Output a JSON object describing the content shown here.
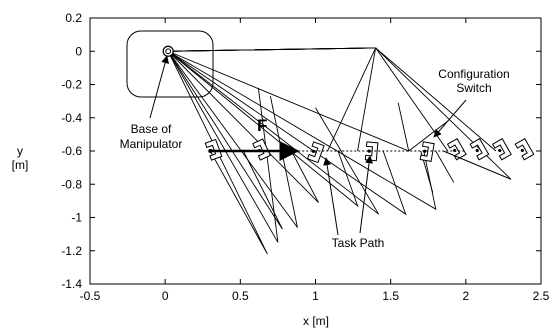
{
  "chart_data": {
    "type": "diagram",
    "xlabel": "x [m]",
    "ylabel_line1": "y",
    "ylabel_line2": "[m]",
    "xlim": [
      -0.5,
      2.5
    ],
    "ylim": [
      -1.4,
      0.2
    ],
    "xticks": [
      -0.5,
      0,
      0.5,
      1,
      1.5,
      2,
      2.5
    ],
    "xtick_labels": [
      "-0.5",
      "0",
      "0.5",
      "1",
      "1.5",
      "2",
      "2.5"
    ],
    "yticks": [
      0.2,
      0,
      -0.2,
      -0.4,
      -0.6,
      -0.8,
      -1,
      -1.2,
      -1.4
    ],
    "ytick_labels": [
      "0.2",
      "0",
      "-0.2",
      "-0.4",
      "-0.6",
      "-0.8",
      "-1",
      "-1.2",
      "-1.4"
    ],
    "base_point": [
      0.02,
      0.0
    ],
    "task_path": {
      "start": [
        0.3,
        -0.6
      ],
      "end": [
        2.0,
        -0.6
      ]
    },
    "force_arrow": {
      "start": [
        0.3,
        -0.6
      ],
      "end": [
        0.88,
        -0.6
      ]
    },
    "extension_line": {
      "start": [
        1.85,
        -0.6
      ],
      "end": [
        2.3,
        -0.77
      ]
    },
    "configurations": [
      {
        "elbow": [
          0.68,
          -1.22
        ],
        "wrist": [
          0.3,
          -0.6
        ]
      },
      {
        "elbow": [
          0.75,
          -1.15
        ],
        "wrist": [
          0.62,
          -0.22
        ]
      },
      {
        "elbow": [
          0.78,
          -1.07
        ],
        "wrist": [
          0.52,
          -0.6
        ]
      },
      {
        "elbow": [
          0.88,
          -1.06
        ],
        "wrist": [
          0.7,
          -0.27
        ]
      },
      {
        "elbow": [
          1.02,
          -0.91
        ],
        "wrist": [
          0.84,
          -0.6
        ]
      },
      {
        "elbow": [
          1.28,
          -0.93
        ],
        "wrist": [
          1.15,
          -0.6
        ]
      },
      {
        "elbow": [
          1.42,
          -0.98
        ],
        "wrist": [
          1.0,
          -0.34
        ]
      },
      {
        "elbow": [
          1.6,
          -0.98
        ],
        "wrist": [
          1.45,
          -0.6
        ]
      },
      {
        "elbow": [
          1.8,
          -0.95
        ],
        "wrist": [
          1.72,
          -0.6
        ]
      },
      {
        "elbow": [
          1.62,
          -0.6
        ],
        "wrist": [
          1.55,
          -0.31
        ]
      },
      {
        "elbow": [
          1.4,
          0.02
        ],
        "wrist": [
          1.08,
          -0.6
        ]
      },
      {
        "elbow": [
          1.4,
          0.02
        ],
        "wrist": [
          1.28,
          -0.6
        ]
      },
      {
        "elbow": [
          1.4,
          0.02
        ],
        "wrist": [
          1.88,
          -0.6
        ]
      },
      {
        "elbow": [
          1.4,
          0.02
        ],
        "wrist": [
          2.2,
          -0.6
        ]
      },
      {
        "elbow": [
          1.4,
          0.02
        ],
        "wrist": [
          2.3,
          -0.77
        ]
      }
    ],
    "extra_links": [
      {
        "from": [
          1.88,
          -0.42
        ],
        "to": [
          1.62,
          -0.6
        ]
      },
      {
        "from": [
          1.92,
          -0.79
        ],
        "to": [
          1.8,
          -0.6
        ]
      },
      {
        "from": [
          1.78,
          -0.85
        ],
        "to": [
          1.7,
          -0.6
        ]
      }
    ],
    "grippers": [
      {
        "x": 0.3,
        "y": -0.6,
        "angle": 160
      },
      {
        "x": 0.62,
        "y": -0.6,
        "angle": 155
      },
      {
        "x": 0.98,
        "y": -0.6,
        "angle": 200
      },
      {
        "x": 1.35,
        "y": -0.6,
        "angle": 185
      },
      {
        "x": 1.72,
        "y": -0.6,
        "angle": 190
      },
      {
        "x": 1.92,
        "y": -0.6,
        "angle": 150
      },
      {
        "x": 2.07,
        "y": -0.6,
        "angle": 150
      },
      {
        "x": 2.22,
        "y": -0.6,
        "angle": 150
      },
      {
        "x": 2.37,
        "y": -0.6,
        "angle": 150
      }
    ],
    "annotations": {
      "base_line1": "Base of",
      "base_line2": "Manipulator",
      "switch_line1": "Configuration",
      "switch_line2": "Switch",
      "task_path": "Task Path",
      "force": "F"
    }
  }
}
